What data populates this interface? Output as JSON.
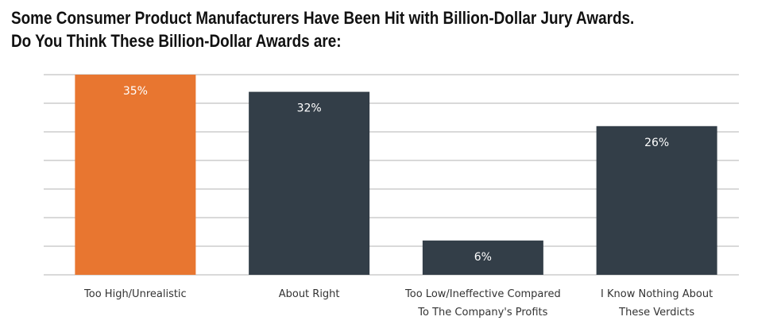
{
  "chart_data": {
    "type": "bar",
    "title": "Some Consumer Product Manufacturers Have Been Hit with Billion-Dollar Jury Awards.",
    "subtitle": "Do You Think These Billion-Dollar Awards are:",
    "categories": [
      [
        "Too High/Unrealistic"
      ],
      [
        "About Right"
      ],
      [
        "Too Low/Ineffective Compared",
        "To The Company's Profits"
      ],
      [
        "I Know Nothing About",
        "These Verdicts"
      ]
    ],
    "values": [
      35,
      32,
      6,
      26
    ],
    "data_labels": [
      "35%",
      "32%",
      "6%",
      "26%"
    ],
    "ylim": [
      0,
      35
    ],
    "grid": true,
    "legend": "none",
    "colors": {
      "highlight": "#E87630",
      "default": "#333E48",
      "grid": "#d9d9d9"
    }
  }
}
